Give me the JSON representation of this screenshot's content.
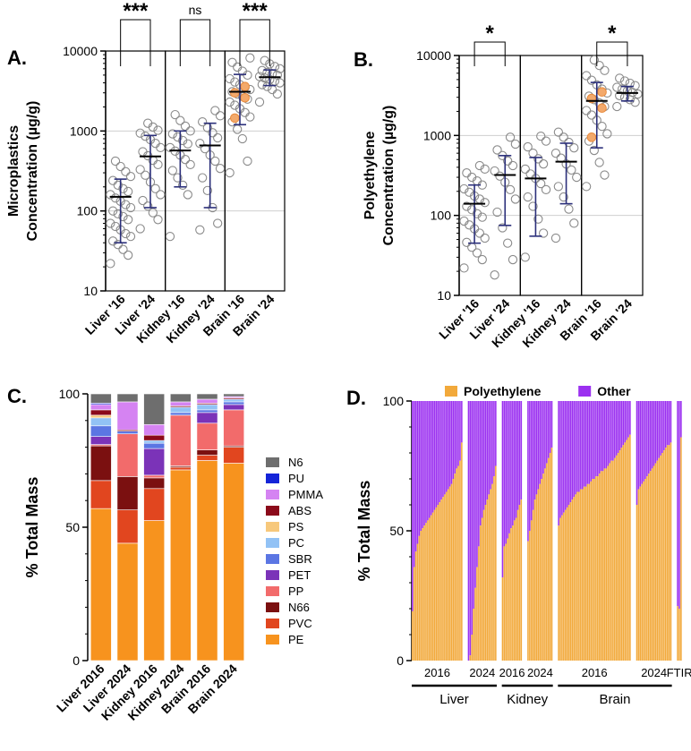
{
  "chart_data": [
    {
      "panel_label": "A.",
      "type": "scatter",
      "scale": "log",
      "ylabel_lines": [
        "Microplastics",
        "Concentration (µg/g)"
      ],
      "yticks": [
        10,
        100,
        1000,
        10000
      ],
      "yticklabels": [
        "10",
        "100",
        "1000",
        "10000"
      ],
      "ylim": [
        10,
        10000
      ],
      "categories": [
        "Liver '16",
        "Liver '24",
        "Kidney '16",
        "Kidney '24",
        "Brain '16",
        "Brain '24"
      ],
      "series": [
        {
          "name": "Liver '16",
          "mean": 150,
          "sd_low": 40,
          "sd_high": 250,
          "values": [
            22,
            28,
            33,
            38,
            42,
            48,
            52,
            58,
            64,
            70,
            78,
            85,
            92,
            100,
            110,
            120,
            132,
            145,
            160,
            175,
            190,
            210,
            240,
            270,
            310,
            360,
            420
          ]
        },
        {
          "name": "Liver '24",
          "mean": 480,
          "sd_low": 110,
          "sd_high": 880,
          "values": [
            60,
            78,
            95,
            115,
            135,
            160,
            190,
            230,
            280,
            330,
            380,
            430,
            490,
            550,
            620,
            700,
            780,
            860,
            940,
            1020,
            1120,
            1250
          ]
        },
        {
          "name": "Kidney '16",
          "mean": 570,
          "sd_low": 200,
          "sd_high": 1000,
          "values": [
            48,
            160,
            210,
            260,
            320,
            380,
            440,
            500,
            560,
            620,
            690,
            760,
            840,
            920,
            1000,
            1150,
            1350,
            1600
          ]
        },
        {
          "name": "Kidney '24",
          "mean": 660,
          "sd_low": 110,
          "sd_high": 1250,
          "values": [
            58,
            70,
            110,
            180,
            260,
            340,
            420,
            500,
            600,
            700,
            820,
            950,
            1100,
            1300,
            1550,
            1800
          ]
        },
        {
          "name": "Brain '16",
          "mean": 3100,
          "sd_low": 1200,
          "sd_high": 5100,
          "values": [
            300,
            420,
            800,
            1050,
            1300,
            1500,
            1700,
            1900,
            2100,
            2300,
            2500,
            2700,
            2900,
            3100,
            3300,
            3500,
            3800,
            4100,
            4500,
            5000,
            5600,
            6300,
            7200,
            8200
          ]
        },
        {
          "name": "Brain '24",
          "mean": 4700,
          "sd_low": 3700,
          "sd_high": 5800,
          "values": [
            2300,
            2900,
            3300,
            3600,
            3800,
            4000,
            4200,
            4400,
            4600,
            4800,
            5000,
            5200,
            5400,
            5700,
            6000,
            6400,
            6900,
            7600
          ]
        }
      ],
      "highlighted_points": {
        "series": "Brain '16",
        "values": [
          1450,
          2600,
          3000,
          3600
        ]
      },
      "significance": [
        {
          "pair": [
            "Liver '16",
            "Liver '24"
          ],
          "label": "***"
        },
        {
          "pair": [
            "Kidney '16",
            "Kidney '24"
          ],
          "label": "ns"
        },
        {
          "pair": [
            "Brain '16",
            "Brain '24"
          ],
          "label": "***"
        }
      ]
    },
    {
      "panel_label": "B.",
      "type": "scatter",
      "scale": "log",
      "ylabel_lines": [
        "Polyethylene",
        "Concentration (µg/g)"
      ],
      "yticks": [
        10,
        100,
        1000,
        10000
      ],
      "yticklabels": [
        "10",
        "100",
        "1000",
        "10000"
      ],
      "ylim": [
        10,
        10000
      ],
      "categories": [
        "Liver '16",
        "Liver '24",
        "Kidney '16",
        "Kidney '24",
        "Brain '16",
        "Brain '24"
      ],
      "series": [
        {
          "name": "Liver '16",
          "mean": 140,
          "sd_low": 45,
          "sd_high": 240,
          "values": [
            22,
            28,
            34,
            40,
            46,
            52,
            60,
            68,
            76,
            85,
            95,
            105,
            118,
            130,
            145,
            160,
            175,
            195,
            215,
            240,
            270,
            300,
            340,
            380,
            420
          ]
        },
        {
          "name": "Liver '24",
          "mean": 320,
          "sd_low": 75,
          "sd_high": 560,
          "values": [
            18,
            28,
            45,
            70,
            110,
            160,
            210,
            260,
            310,
            360,
            420,
            480,
            560,
            660,
            780,
            950
          ]
        },
        {
          "name": "Kidney '16",
          "mean": 290,
          "sd_low": 55,
          "sd_high": 530,
          "values": [
            30,
            60,
            90,
            130,
            170,
            210,
            250,
            290,
            330,
            380,
            440,
            510,
            600,
            720,
            850,
            980
          ]
        },
        {
          "name": "Kidney '24",
          "mean": 470,
          "sd_low": 140,
          "sd_high": 800,
          "values": [
            52,
            80,
            120,
            170,
            230,
            300,
            370,
            440,
            520,
            600,
            700,
            820,
            950,
            1100
          ]
        },
        {
          "name": "Brain '16",
          "mean": 2700,
          "sd_low": 700,
          "sd_high": 4600,
          "values": [
            230,
            320,
            460,
            650,
            850,
            1050,
            1300,
            1550,
            1800,
            2050,
            2300,
            2550,
            2800,
            3100,
            3400,
            3800,
            4300,
            4900,
            5600,
            6500,
            7500,
            8800
          ]
        },
        {
          "name": "Brain '24",
          "mean": 3400,
          "sd_low": 2700,
          "sd_high": 4100,
          "values": [
            2300,
            2600,
            2800,
            3000,
            3150,
            3300,
            3450,
            3600,
            3800,
            4000,
            4200,
            4500,
            4800,
            5200
          ]
        }
      ],
      "highlighted_points": {
        "series": "Brain '16",
        "values": [
          950,
          2200,
          2900,
          3500
        ]
      },
      "significance": [
        {
          "pair": [
            "Liver '16",
            "Liver '24"
          ],
          "label": "*"
        },
        {
          "pair": [
            "Brain '16",
            "Brain '24"
          ],
          "label": "*"
        }
      ]
    },
    {
      "panel_label": "C.",
      "type": "bar",
      "stacked": true,
      "ylabel": "% Total Mass",
      "ylim": [
        0,
        100
      ],
      "yticks": [
        0,
        50,
        100
      ],
      "yticklabels": [
        "0",
        "50",
        "100"
      ],
      "categories": [
        "Liver 2016",
        "Liver 2024",
        "Kidney 2016",
        "Kidney 2024",
        "Brain 2016",
        "Brain 2024"
      ],
      "series": [
        {
          "name": "PE",
          "color": "#f7931e",
          "values": [
            57,
            44,
            52.5,
            71.5,
            75,
            74
          ]
        },
        {
          "name": "PVC",
          "color": "#e1461f",
          "values": [
            10.5,
            12.5,
            12,
            1,
            2,
            6
          ]
        },
        {
          "name": "N66",
          "color": "#7b1010",
          "values": [
            13,
            12.5,
            4,
            0.5,
            2,
            0.5
          ]
        },
        {
          "name": "PP",
          "color": "#f26b6b",
          "values": [
            0.5,
            16,
            1,
            19,
            10,
            13.5
          ]
        },
        {
          "name": "PET",
          "color": "#7b33b8",
          "values": [
            3,
            0,
            10,
            0,
            4,
            2
          ]
        },
        {
          "name": "SBR",
          "color": "#5b76e3",
          "values": [
            4,
            1,
            2,
            1,
            1,
            1
          ]
        },
        {
          "name": "PC",
          "color": "#92c2f5",
          "values": [
            3,
            0,
            1,
            2,
            2,
            1
          ]
        },
        {
          "name": "PS",
          "color": "#f7c87b",
          "values": [
            1,
            0,
            0,
            0,
            0,
            0
          ]
        },
        {
          "name": "ABS",
          "color": "#8b0a1a",
          "values": [
            2,
            0.5,
            2,
            0.5,
            0.5,
            0.5
          ]
        },
        {
          "name": "PMMA",
          "color": "#d583f2",
          "values": [
            2,
            10.5,
            4,
            1.5,
            1.5,
            0.5
          ]
        },
        {
          "name": "PU",
          "color": "#1424d8",
          "values": [
            0.5,
            0,
            0,
            0,
            0,
            0
          ]
        },
        {
          "name": "N6",
          "color": "#6e6e6e",
          "values": [
            3.5,
            3,
            11.5,
            3,
            2,
            1
          ]
        }
      ],
      "legend_order": [
        "N6",
        "PU",
        "PMMA",
        "ABS",
        "PS",
        "PC",
        "SBR",
        "PET",
        "PP",
        "N66",
        "PVC",
        "PE"
      ]
    },
    {
      "panel_label": "D.",
      "type": "bar",
      "stacked": true,
      "ylabel": "% Total Mass",
      "ylim": [
        0,
        100
      ],
      "yticks": [
        0,
        50,
        100
      ],
      "yticklabels": [
        "0",
        "50",
        "100"
      ],
      "legend": [
        {
          "name": "Polyethylene",
          "color": "#f2a93b"
        },
        {
          "name": "Other",
          "color": "#9b30f0"
        }
      ],
      "groups": [
        {
          "name": "Liver 2016",
          "label": "2016",
          "values": [
            19,
            36,
            42,
            45,
            48,
            50,
            51,
            52,
            53,
            54,
            55,
            56,
            57,
            58,
            59,
            60,
            61,
            62,
            63,
            64,
            65,
            66,
            67,
            68,
            70,
            72,
            74,
            75,
            77,
            84
          ]
        },
        {
          "name": "Liver 2024",
          "label": "2024",
          "values": [
            0,
            2,
            10,
            20,
            28,
            36,
            44,
            52,
            55,
            58,
            60,
            62,
            64,
            66,
            68,
            71,
            75
          ]
        },
        {
          "name": "Kidney 2016",
          "label": "2016",
          "values": [
            32,
            44,
            45,
            47,
            49,
            51,
            52,
            54,
            55,
            58,
            60,
            62
          ]
        },
        {
          "name": "Kidney 2024",
          "label": "2024",
          "values": [
            46,
            50,
            54,
            58,
            62,
            64,
            66,
            68,
            70,
            72,
            74,
            76,
            78,
            80,
            82
          ]
        },
        {
          "name": "Brain 2016",
          "label": "2016",
          "values": [
            52,
            55,
            56,
            57,
            58,
            59,
            60,
            61,
            62,
            63,
            64,
            65,
            65,
            66,
            66,
            67,
            67,
            68,
            68,
            69,
            70,
            70,
            71,
            71,
            72,
            73,
            73,
            74,
            74,
            75,
            76,
            77,
            77,
            78,
            79,
            80,
            81,
            82,
            83,
            84,
            85,
            86,
            87
          ]
        },
        {
          "name": "Brain 2024",
          "label": "2024",
          "values": [
            60,
            66,
            67,
            68,
            69,
            70,
            71,
            72,
            73,
            74,
            75,
            76,
            77,
            78,
            79,
            80,
            81,
            82,
            83,
            83,
            84
          ]
        },
        {
          "name": "FTIR",
          "label": "FTIR",
          "values": [
            21,
            20,
            86
          ]
        }
      ],
      "tissue_labels": [
        "Liver",
        "Kidney",
        "Brain"
      ]
    }
  ]
}
